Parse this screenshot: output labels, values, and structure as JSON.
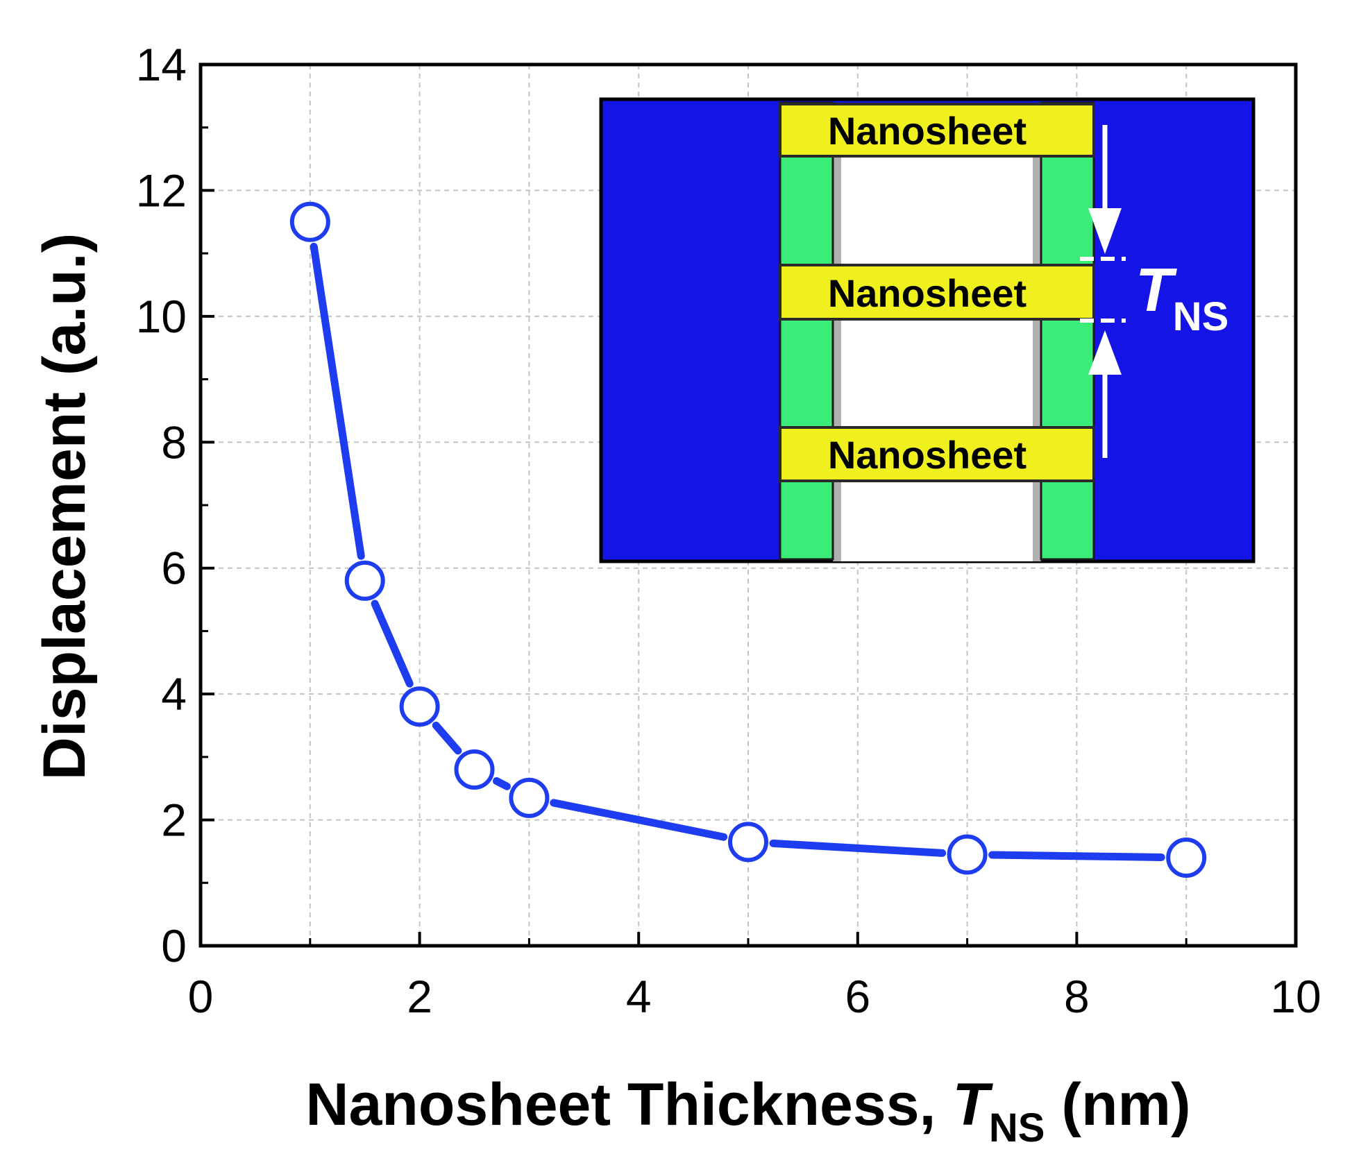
{
  "chart_data": {
    "type": "line",
    "xlabel": "Nanosheet Thickness, ",
    "xlabel_var": "T",
    "xlabel_sub": "NS",
    "xlabel_unit": " (nm)",
    "ylabel": "Displacement (a.u.)",
    "xlim": [
      0,
      10
    ],
    "ylim": [
      0,
      14
    ],
    "x_ticks": [
      0,
      2,
      4,
      6,
      8,
      10
    ],
    "x_tick_labels": [
      "0",
      "2",
      "4",
      "6",
      "8",
      "10"
    ],
    "y_ticks": [
      0,
      2,
      4,
      6,
      8,
      10,
      12,
      14
    ],
    "y_tick_labels": [
      "0",
      "2",
      "4",
      "6",
      "8",
      "10",
      "12",
      "14"
    ],
    "grid": true,
    "series": [
      {
        "name": "Displacement",
        "color": "#1e3cf0",
        "x": [
          1,
          1.5,
          2,
          2.5,
          3,
          5,
          7,
          9
        ],
        "y": [
          11.5,
          5.8,
          3.8,
          2.8,
          2.35,
          1.65,
          1.45,
          1.4
        ]
      }
    ],
    "inset": {
      "labels": [
        "Nanosheet",
        "Nanosheet",
        "Nanosheet"
      ],
      "dimension_var": "T",
      "dimension_sub": "NS",
      "colors": {
        "background": "#1414e6",
        "spacer": "#3cec78",
        "nanosheet": "#f0f01e",
        "cavity": "#ffffff"
      }
    }
  }
}
